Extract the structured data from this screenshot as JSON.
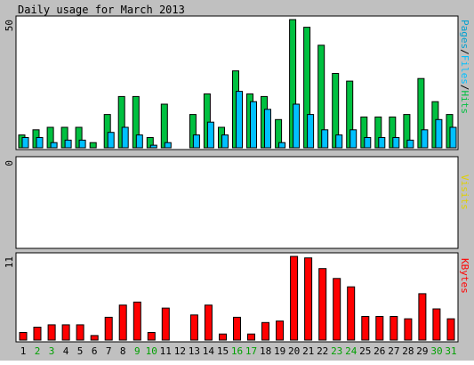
{
  "title": "Daily usage for March 2013",
  "colors": {
    "background": "#c0c0c0",
    "plot_background": "#ffffff",
    "hits": "#00c040",
    "files": "#00c0ff",
    "pages": "#00a0d0",
    "visits": "#e0d000",
    "kbytes": "#ff0000",
    "weekend_label": "#00a000",
    "weekday_label": "#000000",
    "bar_outline": "#000000"
  },
  "legend": {
    "top_parts": [
      {
        "text": "Pages",
        "color": "#00a0d0"
      },
      {
        "text": "/",
        "color": "#000000"
      },
      {
        "text": "Files",
        "color": "#00c0ff"
      },
      {
        "text": "/",
        "color": "#000000"
      },
      {
        "text": "Hits",
        "color": "#00c040"
      }
    ],
    "middle": "Visits",
    "bottom": "KBytes"
  },
  "chart_data": [
    {
      "type": "bar",
      "panel": "hits-files-pages",
      "ymax_label": "50",
      "ylim": [
        0,
        50
      ],
      "categories": [
        "1",
        "2",
        "3",
        "4",
        "5",
        "6",
        "7",
        "8",
        "9",
        "10",
        "11",
        "12",
        "13",
        "14",
        "15",
        "16",
        "17",
        "18",
        "19",
        "20",
        "21",
        "22",
        "23",
        "24",
        "25",
        "26",
        "27",
        "28",
        "29",
        "30",
        "31"
      ],
      "weekend_days": [
        2,
        3,
        9,
        10,
        16,
        17,
        23,
        24,
        30,
        31
      ],
      "series": [
        {
          "name": "Hits",
          "values": [
            5,
            7,
            8,
            8,
            8,
            2,
            13,
            20,
            20,
            4,
            17,
            0,
            13,
            21,
            8,
            30,
            21,
            20,
            11,
            50,
            47,
            40,
            29,
            26,
            12,
            12,
            12,
            13,
            27,
            18,
            13
          ]
        },
        {
          "name": "Files",
          "values": [
            4,
            4,
            2,
            3,
            3,
            0,
            6,
            8,
            5,
            1,
            2,
            0,
            5,
            10,
            5,
            22,
            18,
            15,
            2,
            17,
            13,
            7,
            5,
            7,
            4,
            4,
            4,
            3,
            7,
            11,
            8
          ]
        },
        {
          "name": "Pages",
          "values": [
            0,
            0,
            0,
            0,
            0,
            0,
            0,
            0,
            0,
            0,
            0,
            0,
            0,
            0,
            0,
            0,
            0,
            0,
            0,
            0,
            0,
            0,
            0,
            0,
            0,
            0,
            0,
            0,
            0,
            0,
            0
          ]
        }
      ]
    },
    {
      "type": "bar",
      "panel": "visits",
      "ymax_label": "0",
      "ylim": [
        0,
        1
      ],
      "categories": [
        "1",
        "2",
        "3",
        "4",
        "5",
        "6",
        "7",
        "8",
        "9",
        "10",
        "11",
        "12",
        "13",
        "14",
        "15",
        "16",
        "17",
        "18",
        "19",
        "20",
        "21",
        "22",
        "23",
        "24",
        "25",
        "26",
        "27",
        "28",
        "29",
        "30",
        "31"
      ],
      "series": [
        {
          "name": "Visits",
          "values": [
            0,
            0,
            0,
            0,
            0,
            0,
            0,
            0,
            0,
            0,
            0,
            0,
            0,
            0,
            0,
            0,
            0,
            0,
            0,
            0,
            0,
            0,
            0,
            0,
            0,
            0,
            0,
            0,
            0,
            0,
            0
          ]
        }
      ]
    },
    {
      "type": "bar",
      "panel": "kbytes",
      "ymax_label": "11",
      "ylim": [
        0,
        11
      ],
      "categories": [
        "1",
        "2",
        "3",
        "4",
        "5",
        "6",
        "7",
        "8",
        "9",
        "10",
        "11",
        "12",
        "13",
        "14",
        "15",
        "16",
        "17",
        "18",
        "19",
        "20",
        "21",
        "22",
        "23",
        "24",
        "25",
        "26",
        "27",
        "28",
        "29",
        "30",
        "31"
      ],
      "series": [
        {
          "name": "KBytes",
          "values": [
            1.0,
            1.7,
            2.0,
            2.0,
            2.0,
            0.6,
            3.0,
            4.6,
            5.0,
            1.0,
            4.2,
            0,
            3.3,
            4.6,
            0.8,
            3.0,
            0.8,
            2.3,
            2.5,
            11.0,
            10.8,
            9.4,
            8.1,
            7.0,
            3.1,
            3.1,
            3.1,
            2.8,
            6.1,
            4.1,
            2.8
          ]
        }
      ]
    }
  ]
}
